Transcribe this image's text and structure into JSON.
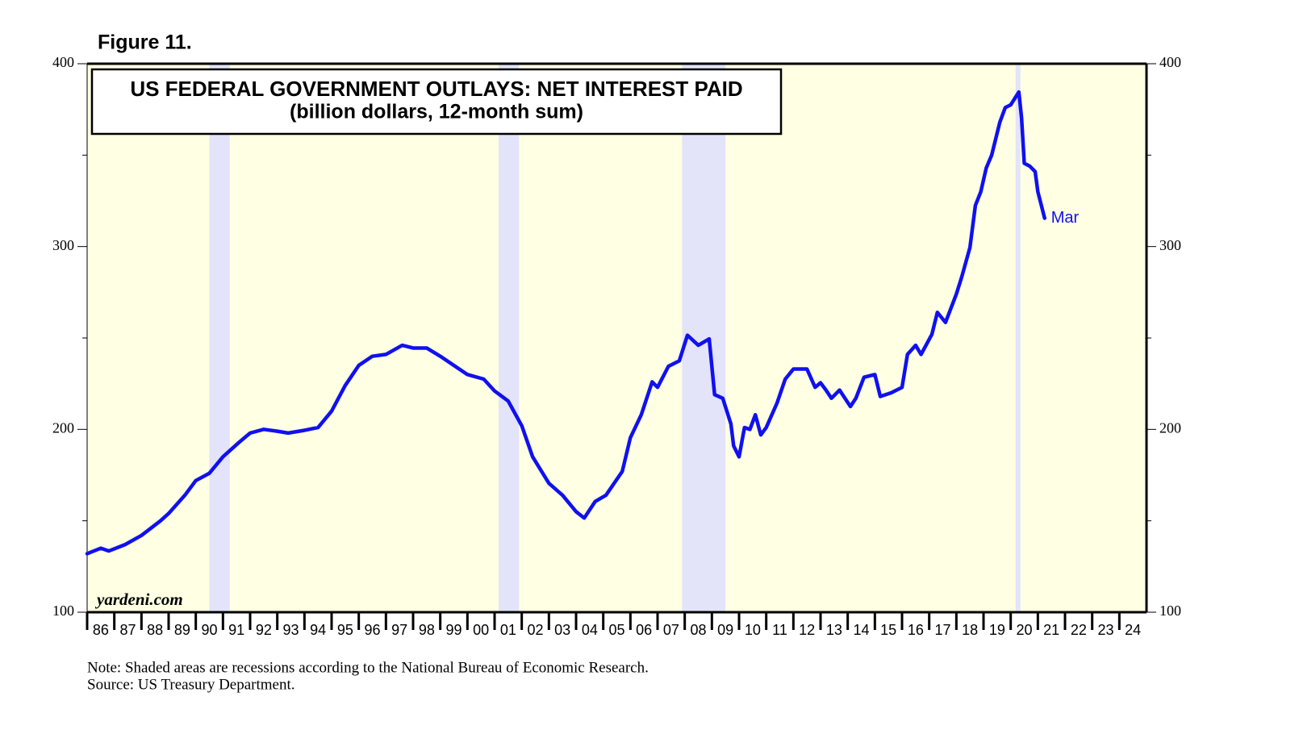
{
  "chart_data": {
    "type": "line",
    "figure_label": "Figure 11.",
    "title": "US FEDERAL GOVERNMENT OUTLAYS: NET INTEREST PAID",
    "subtitle": "(billion dollars, 12-month sum)",
    "watermark": "yardeni.com",
    "end_label": "Mar",
    "note": "Note: Shaded areas are recessions according to the National Bureau of Economic Research.",
    "source": "Source: US Treasury Department.",
    "color": "#1010f0",
    "background": "#ffffe3",
    "recession_color": "#e3e3fa",
    "recessions": [
      [
        1990.5,
        1991.25
      ],
      [
        2001.15,
        2001.9
      ],
      [
        2007.9,
        2009.5
      ],
      [
        2020.18,
        2020.36
      ]
    ],
    "xlim": [
      1986,
      2025
    ],
    "xticks": [
      {
        "value": 1986,
        "label": "86"
      },
      {
        "value": 1987,
        "label": "87"
      },
      {
        "value": 1988,
        "label": "88"
      },
      {
        "value": 1989,
        "label": "89"
      },
      {
        "value": 1990,
        "label": "90"
      },
      {
        "value": 1991,
        "label": "91"
      },
      {
        "value": 1992,
        "label": "92"
      },
      {
        "value": 1993,
        "label": "93"
      },
      {
        "value": 1994,
        "label": "94"
      },
      {
        "value": 1995,
        "label": "95"
      },
      {
        "value": 1996,
        "label": "96"
      },
      {
        "value": 1997,
        "label": "97"
      },
      {
        "value": 1998,
        "label": "98"
      },
      {
        "value": 1999,
        "label": "99"
      },
      {
        "value": 2000,
        "label": "00"
      },
      {
        "value": 2001,
        "label": "01"
      },
      {
        "value": 2002,
        "label": "02"
      },
      {
        "value": 2003,
        "label": "03"
      },
      {
        "value": 2004,
        "label": "04"
      },
      {
        "value": 2005,
        "label": "05"
      },
      {
        "value": 2006,
        "label": "06"
      },
      {
        "value": 2007,
        "label": "07"
      },
      {
        "value": 2008,
        "label": "08"
      },
      {
        "value": 2009,
        "label": "09"
      },
      {
        "value": 2010,
        "label": "10"
      },
      {
        "value": 2011,
        "label": "11"
      },
      {
        "value": 2012,
        "label": "12"
      },
      {
        "value": 2013,
        "label": "13"
      },
      {
        "value": 2014,
        "label": "14"
      },
      {
        "value": 2015,
        "label": "15"
      },
      {
        "value": 2016,
        "label": "16"
      },
      {
        "value": 2017,
        "label": "17"
      },
      {
        "value": 2018,
        "label": "18"
      },
      {
        "value": 2019,
        "label": "19"
      },
      {
        "value": 2020,
        "label": "20"
      },
      {
        "value": 2021,
        "label": "21"
      },
      {
        "value": 2022,
        "label": "22"
      },
      {
        "value": 2023,
        "label": "23"
      },
      {
        "value": 2024,
        "label": "24"
      }
    ],
    "ylim": [
      100,
      400
    ],
    "yticks": [
      100,
      200,
      300,
      400
    ],
    "minor_yticks": [
      150,
      250,
      350
    ],
    "x": [
      1986.0,
      1986.5,
      1986.8,
      1987.4,
      1988.0,
      1988.7,
      1989.0,
      1989.6,
      1990.0,
      1990.5,
      1991.0,
      1991.6,
      1992.0,
      1992.5,
      1993.0,
      1993.4,
      1994.0,
      1994.5,
      1995.0,
      1995.5,
      1996.0,
      1996.5,
      1997.0,
      1997.6,
      1998.0,
      1998.5,
      1999.0,
      1999.5,
      2000.0,
      2000.6,
      2001.0,
      2001.5,
      2002.0,
      2002.4,
      2003.0,
      2003.5,
      2004.0,
      2004.3,
      2004.7,
      2005.1,
      2005.7,
      2006.0,
      2006.4,
      2006.8,
      2007.0,
      2007.4,
      2007.8,
      2008.1,
      2008.5,
      2008.9,
      2009.1,
      2009.4,
      2009.7,
      2009.8,
      2010.0,
      2010.2,
      2010.4,
      2010.6,
      2010.8,
      2011.0,
      2011.4,
      2011.7,
      2012.0,
      2012.5,
      2012.8,
      2013.0,
      2013.2,
      2013.4,
      2013.7,
      2014.1,
      2014.3,
      2014.6,
      2015.0,
      2015.2,
      2015.6,
      2016.0,
      2016.2,
      2016.5,
      2016.7,
      2017.1,
      2017.3,
      2017.6,
      2018.0,
      2018.2,
      2018.5,
      2018.7,
      2018.9,
      2019.1,
      2019.3,
      2019.6,
      2019.8,
      2020.0,
      2020.3,
      2020.4,
      2020.5,
      2020.7,
      2020.9,
      2021.0,
      2021.25
    ],
    "values": [
      132,
      135,
      133.5,
      137,
      142,
      150,
      154,
      164,
      172,
      176,
      185,
      193,
      198,
      200,
      199,
      198,
      199.5,
      201,
      210,
      224,
      235,
      240,
      241,
      246,
      244.5,
      244.5,
      240,
      235,
      230,
      227.5,
      221,
      215.5,
      202,
      185,
      170.5,
      164,
      155,
      151.5,
      160.5,
      164,
      177,
      195.5,
      208,
      226,
      223,
      234.5,
      237.5,
      251.5,
      246,
      249.5,
      219,
      217,
      203,
      191,
      185,
      201,
      200,
      208,
      197,
      201,
      214.5,
      227.5,
      233,
      233,
      223,
      225.5,
      221.5,
      217,
      221.5,
      212.5,
      217,
      228.5,
      230,
      218,
      220,
      223,
      241,
      246,
      241,
      252,
      264,
      258.5,
      274,
      283.5,
      299.5,
      322.5,
      330,
      343,
      350,
      368,
      376,
      377.5,
      384.5,
      370.5,
      345.5,
      344,
      341,
      330,
      315.5
    ]
  }
}
